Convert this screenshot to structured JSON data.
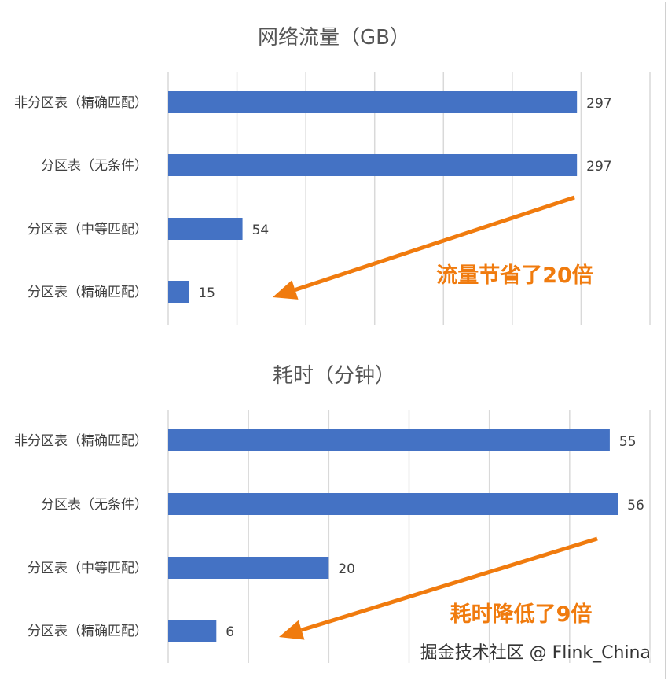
{
  "chart_data": [
    {
      "type": "bar",
      "orientation": "horizontal",
      "title": "网络流量（GB）",
      "categories": [
        "非分区表（精确匹配）",
        "分区表（无条件）",
        "分区表（中等匹配）",
        "分区表（精确匹配）"
      ],
      "values": [
        297,
        297,
        54,
        15
      ],
      "xlim": [
        0,
        350
      ],
      "grid": true,
      "bar_color": "#4472C4",
      "annotation": {
        "text": "流量节省了20倍",
        "color": "#F07B0E"
      }
    },
    {
      "type": "bar",
      "orientation": "horizontal",
      "title": "耗时（分钟）",
      "categories": [
        "非分区表（精确匹配）",
        "分区表（无条件）",
        "分区表（中等匹配）",
        "分区表（精确匹配）"
      ],
      "values": [
        55,
        56,
        20,
        6
      ],
      "xlim": [
        0,
        60
      ],
      "grid": true,
      "bar_color": "#4472C4",
      "annotation": {
        "text": "耗时降低了9倍",
        "color": "#F07B0E"
      }
    }
  ],
  "watermark": "掘金技术社区 @ Flink_China"
}
